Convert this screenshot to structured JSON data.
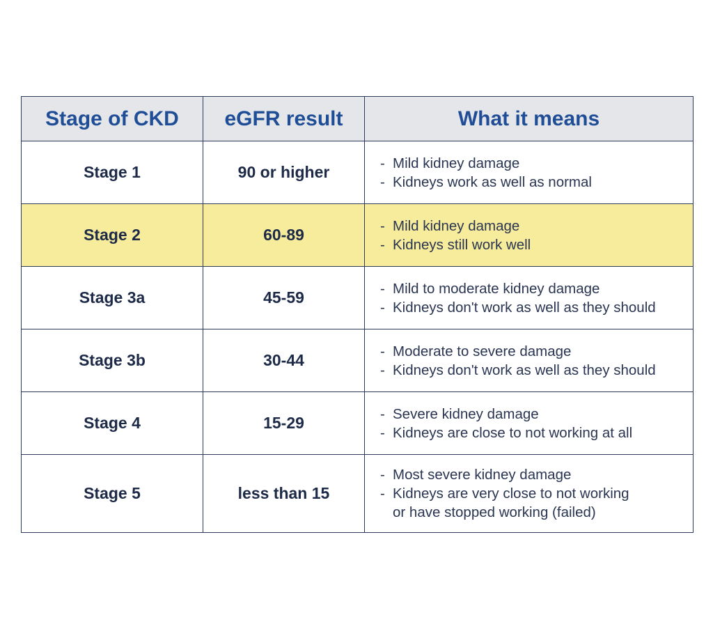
{
  "header": {
    "col_stage": "Stage of CKD",
    "col_egfr": "eGFR result",
    "col_means": "What it means"
  },
  "rows": [
    {
      "stage": "Stage 1",
      "egfr": "90 or higher",
      "means": [
        "Mild kidney damage",
        "Kidneys work as well as normal"
      ],
      "highlighted": false
    },
    {
      "stage": "Stage 2",
      "egfr": "60-89",
      "means": [
        "Mild kidney damage",
        "Kidneys still work well"
      ],
      "highlighted": true
    },
    {
      "stage": "Stage 3a",
      "egfr": "45-59",
      "means": [
        "Mild to moderate kidney damage",
        "Kidneys don't work as well as they should"
      ],
      "highlighted": false
    },
    {
      "stage": "Stage 3b",
      "egfr": "30-44",
      "means": [
        "Moderate to severe damage",
        "Kidneys don't work as well as they should"
      ],
      "highlighted": false
    },
    {
      "stage": "Stage 4",
      "egfr": "15-29",
      "means": [
        "Severe kidney damage",
        "Kidneys are close to not working at all"
      ],
      "highlighted": false
    },
    {
      "stage": "Stage 5",
      "egfr": "less than 15",
      "means": [
        "Most severe kidney damage",
        "Kidneys are very close to not working",
        "or have stopped working (failed)"
      ],
      "highlighted": false
    }
  ],
  "colors": {
    "header_text": "#1f4e96",
    "header_bg": "#e4e6ea",
    "highlight_bg": "#f7ec9b",
    "border": "#2b3a5c",
    "body_text": "#1d2a47"
  }
}
